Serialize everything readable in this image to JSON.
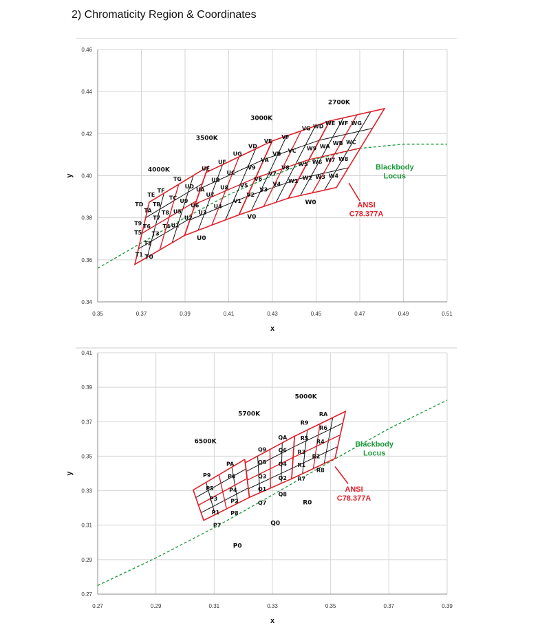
{
  "heading": "2)  Chromaticity  Region  &  Coordinates",
  "colors": {
    "grid": "#d4d4d4",
    "outline": "#e0202a",
    "quad": "#111111",
    "locus": "#1e9a3c",
    "annotation": "#e0202a"
  },
  "chart_data": [
    {
      "type": "scatter",
      "xlabel": "x",
      "ylabel": "y",
      "xlim": [
        0.35,
        0.51
      ],
      "ylim": [
        0.34,
        0.46
      ],
      "xticks": [
        "0.35",
        "0.37",
        "0.39",
        "0.41",
        "0.43",
        "0.45",
        "0.47",
        "0.49",
        "0.51"
      ],
      "yticks": [
        "0.34",
        "0.36",
        "0.38",
        "0.40",
        "0.42",
        "0.44",
        "0.46"
      ],
      "grid": true,
      "series": [
        {
          "name": "Blackbody Locus",
          "points": [
            [
              0.35,
              0.356
            ],
            [
              0.37,
              0.368
            ],
            [
              0.39,
              0.38
            ],
            [
              0.41,
              0.391
            ],
            [
              0.43,
              0.4
            ],
            [
              0.45,
              0.408
            ],
            [
              0.47,
              0.413
            ],
            [
              0.49,
              0.415
            ],
            [
              0.51,
              0.415
            ]
          ]
        }
      ],
      "ansi_boxes": [
        {
          "cct": "4000K",
          "corners": [
            [
              0.367,
              0.3578
            ],
            [
              0.3736,
              0.3874
            ],
            [
              0.4006,
              0.4044
            ],
            [
              0.3898,
              0.3716
            ]
          ]
        },
        {
          "cct": "3500K",
          "corners": [
            [
              0.3898,
              0.3716
            ],
            [
              0.3996,
              0.4015
            ],
            [
              0.4299,
              0.4165
            ],
            [
              0.4147,
              0.3814
            ]
          ]
        },
        {
          "cct": "3000K",
          "corners": [
            [
              0.4147,
              0.3814
            ],
            [
              0.4299,
              0.4165
            ],
            [
              0.4562,
              0.426
            ],
            [
              0.4373,
              0.3893
            ]
          ]
        },
        {
          "cct": "2700K",
          "corners": [
            [
              0.4373,
              0.3893
            ],
            [
              0.4562,
              0.426
            ],
            [
              0.4813,
              0.4319
            ],
            [
              0.4593,
              0.3944
            ]
          ]
        }
      ],
      "cell_labels": [
        {
          "text": "T1",
          "x": 0.369,
          "y": 0.3625
        },
        {
          "text": "T2",
          "x": 0.373,
          "y": 0.368
        },
        {
          "text": "T5",
          "x": 0.3685,
          "y": 0.373
        },
        {
          "text": "T3",
          "x": 0.3765,
          "y": 0.3725
        },
        {
          "text": "T6",
          "x": 0.3725,
          "y": 0.376
        },
        {
          "text": "T9",
          "x": 0.3685,
          "y": 0.3775
        },
        {
          "text": "T4",
          "x": 0.3815,
          "y": 0.376
        },
        {
          "text": "T7",
          "x": 0.377,
          "y": 0.38
        },
        {
          "text": "TA",
          "x": 0.373,
          "y": 0.3835
        },
        {
          "text": "TD",
          "x": 0.369,
          "y": 0.3865
        },
        {
          "text": "T8",
          "x": 0.381,
          "y": 0.3825
        },
        {
          "text": "TB",
          "x": 0.377,
          "y": 0.3865
        },
        {
          "text": "TE",
          "x": 0.3745,
          "y": 0.391
        },
        {
          "text": "TC",
          "x": 0.3845,
          "y": 0.3895
        },
        {
          "text": "TF",
          "x": 0.379,
          "y": 0.393
        },
        {
          "text": "U1",
          "x": 0.3855,
          "y": 0.3765
        },
        {
          "text": "U5",
          "x": 0.3865,
          "y": 0.383
        },
        {
          "text": "U9",
          "x": 0.3895,
          "y": 0.388
        },
        {
          "text": "TG",
          "x": 0.3865,
          "y": 0.3985
        },
        {
          "text": "UD",
          "x": 0.392,
          "y": 0.395
        },
        {
          "text": "U2",
          "x": 0.3915,
          "y": 0.38
        },
        {
          "text": "U6",
          "x": 0.3945,
          "y": 0.386
        },
        {
          "text": "UA",
          "x": 0.397,
          "y": 0.3935
        },
        {
          "text": "UE",
          "x": 0.3995,
          "y": 0.4035
        },
        {
          "text": "U3",
          "x": 0.398,
          "y": 0.3825
        },
        {
          "text": "U7",
          "x": 0.4015,
          "y": 0.391
        },
        {
          "text": "UB",
          "x": 0.404,
          "y": 0.398
        },
        {
          "text": "UF",
          "x": 0.407,
          "y": 0.4065
        },
        {
          "text": "U4",
          "x": 0.405,
          "y": 0.3855
        },
        {
          "text": "U8",
          "x": 0.408,
          "y": 0.3945
        },
        {
          "text": "UC",
          "x": 0.411,
          "y": 0.4015
        },
        {
          "text": "UG",
          "x": 0.414,
          "y": 0.4105
        },
        {
          "text": "V1",
          "x": 0.414,
          "y": 0.388
        },
        {
          "text": "V5",
          "x": 0.417,
          "y": 0.3955
        },
        {
          "text": "V9",
          "x": 0.4205,
          "y": 0.404
        },
        {
          "text": "V2",
          "x": 0.42,
          "y": 0.391
        },
        {
          "text": "V6",
          "x": 0.4235,
          "y": 0.3985
        },
        {
          "text": "VA",
          "x": 0.4265,
          "y": 0.4075
        },
        {
          "text": "VD",
          "x": 0.421,
          "y": 0.414
        },
        {
          "text": "V3",
          "x": 0.426,
          "y": 0.3935
        },
        {
          "text": "V7",
          "x": 0.43,
          "y": 0.401
        },
        {
          "text": "VB",
          "x": 0.432,
          "y": 0.4105
        },
        {
          "text": "VE",
          "x": 0.428,
          "y": 0.4165
        },
        {
          "text": "V4",
          "x": 0.432,
          "y": 0.396
        },
        {
          "text": "V8",
          "x": 0.436,
          "y": 0.404
        },
        {
          "text": "VC",
          "x": 0.439,
          "y": 0.412
        },
        {
          "text": "VF",
          "x": 0.436,
          "y": 0.4185
        },
        {
          "text": "W1",
          "x": 0.4395,
          "y": 0.3975
        },
        {
          "text": "W5",
          "x": 0.444,
          "y": 0.4055
        },
        {
          "text": "W9",
          "x": 0.448,
          "y": 0.413
        },
        {
          "text": "VG",
          "x": 0.4455,
          "y": 0.4225
        },
        {
          "text": "W2",
          "x": 0.446,
          "y": 0.399
        },
        {
          "text": "W6",
          "x": 0.4505,
          "y": 0.4065
        },
        {
          "text": "WA",
          "x": 0.454,
          "y": 0.414
        },
        {
          "text": "WD",
          "x": 0.451,
          "y": 0.4235
        },
        {
          "text": "W3",
          "x": 0.452,
          "y": 0.3995
        },
        {
          "text": "W7",
          "x": 0.4565,
          "y": 0.4075
        },
        {
          "text": "WB",
          "x": 0.46,
          "y": 0.4155
        },
        {
          "text": "WE",
          "x": 0.4565,
          "y": 0.425
        },
        {
          "text": "W4",
          "x": 0.458,
          "y": 0.4
        },
        {
          "text": "W8",
          "x": 0.4625,
          "y": 0.408
        },
        {
          "text": "WC",
          "x": 0.466,
          "y": 0.416
        },
        {
          "text": "WF",
          "x": 0.4625,
          "y": 0.425
        },
        {
          "text": "WG",
          "x": 0.4685,
          "y": 0.425
        }
      ],
      "cct_labels": [
        {
          "text": "4000K",
          "x": 0.378,
          "y": 0.402
        },
        {
          "text": "3500K",
          "x": 0.4,
          "y": 0.417
        },
        {
          "text": "3000K",
          "x": 0.425,
          "y": 0.4265
        },
        {
          "text": "2700K",
          "x": 0.4605,
          "y": 0.434
        }
      ],
      "region_labels": [
        {
          "text": "T0",
          "x": 0.3735,
          "y": 0.3605
        },
        {
          "text": "U0",
          "x": 0.3975,
          "y": 0.3695
        },
        {
          "text": "V0",
          "x": 0.4205,
          "y": 0.3795
        },
        {
          "text": "W0",
          "x": 0.4475,
          "y": 0.3865
        }
      ],
      "annotations": {
        "blackbody": [
          "Blackbody",
          "Locus"
        ],
        "ansi": [
          "ANSI",
          "C78.377A"
        ]
      }
    },
    {
      "type": "scatter",
      "xlabel": "x",
      "ylabel": "y",
      "xlim": [
        0.27,
        0.39
      ],
      "ylim": [
        0.27,
        0.41
      ],
      "xticks": [
        "0.27",
        "0.29",
        "0.31",
        "0.33",
        "0.35",
        "0.37",
        "0.39"
      ],
      "yticks": [
        "0.27",
        "0.29",
        "0.31",
        "0.33",
        "0.35",
        "0.37",
        "0.39",
        "0.41"
      ],
      "grid": true,
      "series": [
        {
          "name": "Blackbody Locus",
          "points": [
            [
              0.27,
              0.275
            ],
            [
              0.29,
              0.291
            ],
            [
              0.31,
              0.3085
            ],
            [
              0.33,
              0.3275
            ],
            [
              0.35,
              0.347
            ],
            [
              0.37,
              0.366
            ],
            [
              0.39,
              0.3825
            ]
          ]
        }
      ],
      "ansi_boxes": [
        {
          "cct": "6500K",
          "corners": [
            [
              0.3064,
              0.3128
            ],
            [
              0.3028,
              0.3304
            ],
            [
              0.3205,
              0.3481
            ],
            [
              0.3221,
              0.3261
            ]
          ]
        },
        {
          "cct": "5700K",
          "corners": [
            [
              0.3221,
              0.3261
            ],
            [
              0.3207,
              0.3462
            ],
            [
              0.3376,
              0.3616
            ],
            [
              0.3366,
              0.3369
            ]
          ]
        },
        {
          "cct": "5000K",
          "corners": [
            [
              0.3366,
              0.3369
            ],
            [
              0.3376,
              0.3616
            ],
            [
              0.3551,
              0.376
            ],
            [
              0.3515,
              0.3487
            ]
          ]
        }
      ],
      "cell_labels": [
        {
          "text": "P7",
          "x": 0.311,
          "y": 0.31
        },
        {
          "text": "P8",
          "x": 0.317,
          "y": 0.317
        },
        {
          "text": "P1",
          "x": 0.3105,
          "y": 0.3175
        },
        {
          "text": "P2",
          "x": 0.317,
          "y": 0.324
        },
        {
          "text": "P3",
          "x": 0.3098,
          "y": 0.3255
        },
        {
          "text": "P4",
          "x": 0.3165,
          "y": 0.3305
        },
        {
          "text": "P5",
          "x": 0.3085,
          "y": 0.3315
        },
        {
          "text": "P6",
          "x": 0.316,
          "y": 0.3385
        },
        {
          "text": "P9",
          "x": 0.3075,
          "y": 0.339
        },
        {
          "text": "PA",
          "x": 0.3155,
          "y": 0.3455
        },
        {
          "text": "Q7",
          "x": 0.3265,
          "y": 0.323
        },
        {
          "text": "Q8",
          "x": 0.3335,
          "y": 0.328
        },
        {
          "text": "Q1",
          "x": 0.3265,
          "y": 0.331
        },
        {
          "text": "Q2",
          "x": 0.3335,
          "y": 0.3375
        },
        {
          "text": "Q3",
          "x": 0.3265,
          "y": 0.3385
        },
        {
          "text": "Q4",
          "x": 0.3335,
          "y": 0.3455
        },
        {
          "text": "Q5",
          "x": 0.3265,
          "y": 0.3465
        },
        {
          "text": "Q6",
          "x": 0.3335,
          "y": 0.3535
        },
        {
          "text": "Q9",
          "x": 0.3265,
          "y": 0.354
        },
        {
          "text": "QA",
          "x": 0.3335,
          "y": 0.361
        },
        {
          "text": "R7",
          "x": 0.34,
          "y": 0.337
        },
        {
          "text": "R8",
          "x": 0.3465,
          "y": 0.342
        },
        {
          "text": "R1",
          "x": 0.34,
          "y": 0.345
        },
        {
          "text": "R2",
          "x": 0.345,
          "y": 0.35
        },
        {
          "text": "R3",
          "x": 0.34,
          "y": 0.3525
        },
        {
          "text": "R4",
          "x": 0.3465,
          "y": 0.3585
        },
        {
          "text": "R5",
          "x": 0.341,
          "y": 0.3605
        },
        {
          "text": "R6",
          "x": 0.3475,
          "y": 0.3665
        },
        {
          "text": "R9",
          "x": 0.341,
          "y": 0.3695
        },
        {
          "text": "RA",
          "x": 0.3475,
          "y": 0.3745
        }
      ],
      "cct_labels": [
        {
          "text": "6500K",
          "x": 0.307,
          "y": 0.3575
        },
        {
          "text": "5700K",
          "x": 0.322,
          "y": 0.3735
        },
        {
          "text": "5000K",
          "x": 0.3415,
          "y": 0.3835
        }
      ],
      "region_labels": [
        {
          "text": "P0",
          "x": 0.318,
          "y": 0.297
        },
        {
          "text": "Q0",
          "x": 0.331,
          "y": 0.31
        },
        {
          "text": "R0",
          "x": 0.342,
          "y": 0.322
        }
      ],
      "annotations": {
        "blackbody": [
          "Blackbody",
          "Locus"
        ],
        "ansi": [
          "ANSI",
          "C78.377A"
        ]
      }
    }
  ]
}
